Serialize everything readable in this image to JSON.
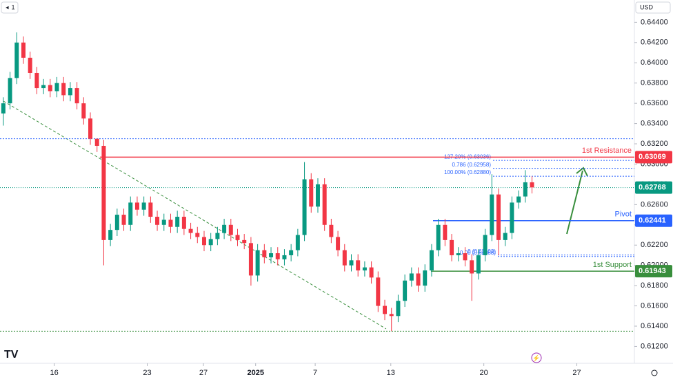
{
  "toolbar": {
    "interval": "1",
    "currency": "USD"
  },
  "chart_data": {
    "type": "candlestick",
    "up_color": "#089981",
    "down_color": "#f23645",
    "open": [
      0.635,
      0.636,
      0.6385,
      0.642,
      0.6405,
      0.639,
      0.6375,
      0.6378,
      0.6372,
      0.638,
      0.6368,
      0.6375,
      0.636,
      0.6345,
      0.6325,
      0.6318,
      0.6225,
      0.6235,
      0.625,
      0.624,
      0.6262,
      0.6255,
      0.6262,
      0.6248,
      0.624,
      0.6245,
      0.6238,
      0.6248,
      0.6236,
      0.6232,
      0.6228,
      0.622,
      0.6226,
      0.6232,
      0.624,
      0.623,
      0.6225,
      0.6222,
      0.619,
      0.6215,
      0.6208,
      0.6212,
      0.6206,
      0.621,
      0.6215,
      0.623,
      0.6285,
      0.6258,
      0.628,
      0.624,
      0.6228,
      0.6215,
      0.62,
      0.6205,
      0.6195,
      0.6198,
      0.6188,
      0.616,
      0.6152,
      0.615,
      0.6165,
      0.6185,
      0.6192,
      0.618,
      0.6195,
      0.6215,
      0.624,
      0.6225,
      0.621,
      0.6212,
      0.6205,
      0.6192,
      0.621,
      0.623,
      0.627,
      0.6225,
      0.6232,
      0.6262,
      0.6268,
      0.6282
    ],
    "high": [
      0.6366,
      0.6391,
      0.643,
      0.6426,
      0.6411,
      0.6396,
      0.6384,
      0.6384,
      0.6386,
      0.6386,
      0.6381,
      0.6381,
      0.6366,
      0.6351,
      0.6325,
      0.6324,
      0.6241,
      0.6256,
      0.6256,
      0.6268,
      0.6268,
      0.6268,
      0.6268,
      0.6254,
      0.6251,
      0.6251,
      0.6254,
      0.6254,
      0.6242,
      0.6238,
      0.6234,
      0.6232,
      0.6238,
      0.6246,
      0.6246,
      0.6236,
      0.6231,
      0.6228,
      0.6221,
      0.6221,
      0.6218,
      0.6218,
      0.6216,
      0.6221,
      0.6236,
      0.6302,
      0.6291,
      0.6286,
      0.6286,
      0.6246,
      0.6234,
      0.6221,
      0.6211,
      0.6211,
      0.6204,
      0.6204,
      0.6194,
      0.6166,
      0.6158,
      0.6171,
      0.6191,
      0.6198,
      0.6198,
      0.6201,
      0.6221,
      0.6246,
      0.6246,
      0.6231,
      0.6218,
      0.6218,
      0.6211,
      0.6216,
      0.6236,
      0.629,
      0.6276,
      0.6238,
      0.6268,
      0.6274,
      0.6294,
      0.6288
    ],
    "low": [
      0.6338,
      0.6354,
      0.6379,
      0.6399,
      0.6384,
      0.6369,
      0.6369,
      0.6366,
      0.6366,
      0.6362,
      0.6362,
      0.6354,
      0.6339,
      0.6319,
      0.6312,
      0.62,
      0.6219,
      0.6229,
      0.6234,
      0.6234,
      0.6249,
      0.6249,
      0.6242,
      0.6234,
      0.6234,
      0.6232,
      0.6232,
      0.623,
      0.6226,
      0.6222,
      0.6214,
      0.6214,
      0.622,
      0.6226,
      0.6224,
      0.6219,
      0.6216,
      0.618,
      0.6184,
      0.6202,
      0.6202,
      0.62,
      0.62,
      0.6204,
      0.6209,
      0.6224,
      0.6252,
      0.6252,
      0.6234,
      0.6222,
      0.6209,
      0.6194,
      0.6194,
      0.6189,
      0.6189,
      0.6182,
      0.6154,
      0.6146,
      0.6135,
      0.6144,
      0.6159,
      0.6179,
      0.6174,
      0.6174,
      0.6189,
      0.6209,
      0.6219,
      0.6204,
      0.6204,
      0.6199,
      0.6165,
      0.6186,
      0.6204,
      0.6224,
      0.621,
      0.6219,
      0.6226,
      0.6256,
      0.6262,
      0.6271
    ],
    "close": [
      0.636,
      0.6385,
      0.642,
      0.6405,
      0.639,
      0.6375,
      0.6378,
      0.6372,
      0.638,
      0.6368,
      0.6375,
      0.636,
      0.6345,
      0.6325,
      0.6318,
      0.6225,
      0.6235,
      0.625,
      0.624,
      0.6262,
      0.6255,
      0.6262,
      0.6248,
      0.624,
      0.6245,
      0.6238,
      0.6248,
      0.6236,
      0.6232,
      0.6228,
      0.622,
      0.6226,
      0.6232,
      0.624,
      0.623,
      0.6225,
      0.6222,
      0.619,
      0.6215,
      0.6208,
      0.6212,
      0.6206,
      0.621,
      0.6215,
      0.623,
      0.6285,
      0.6258,
      0.628,
      0.624,
      0.6228,
      0.6215,
      0.62,
      0.6205,
      0.6195,
      0.6198,
      0.6188,
      0.616,
      0.6152,
      0.615,
      0.6165,
      0.6185,
      0.6192,
      0.618,
      0.6195,
      0.6215,
      0.624,
      0.6225,
      0.621,
      0.6212,
      0.6205,
      0.6192,
      0.621,
      0.623,
      0.627,
      0.6225,
      0.6232,
      0.6262,
      0.6268,
      0.6282,
      0.6277
    ],
    "xlim": [
      -0.5,
      94.3
    ],
    "xticks": [
      {
        "value": 7.6,
        "label": "16"
      },
      {
        "value": 21.5,
        "label": "23"
      },
      {
        "value": 29.9,
        "label": "27"
      },
      {
        "value": 37.7,
        "label": "2025"
      },
      {
        "value": 46.6,
        "label": "7"
      },
      {
        "value": 57.9,
        "label": "13"
      },
      {
        "value": 71.8,
        "label": "20"
      },
      {
        "value": 85.7,
        "label": "27"
      }
    ],
    "ylim": [
      0.6104,
      0.6462
    ],
    "yticks": [
      {
        "value": 0.612,
        "label": "0.61200"
      },
      {
        "value": 0.614,
        "label": "0.61400"
      },
      {
        "value": 0.616,
        "label": "0.61600"
      },
      {
        "value": 0.618,
        "label": "0.61800"
      },
      {
        "value": 0.62,
        "label": "0.62000"
      },
      {
        "value": 0.622,
        "label": "0.62200"
      },
      {
        "value": 0.624,
        "label": "0.62400"
      },
      {
        "value": 0.626,
        "label": "0.62600"
      },
      {
        "value": 0.628,
        "label": "0.62800"
      },
      {
        "value": 0.63,
        "label": "0.63000"
      },
      {
        "value": 0.632,
        "label": "0.63200"
      },
      {
        "value": 0.634,
        "label": "0.63400"
      },
      {
        "value": 0.636,
        "label": "0.63600"
      },
      {
        "value": 0.638,
        "label": "0.63800"
      },
      {
        "value": 0.64,
        "label": "0.64000"
      },
      {
        "value": 0.642,
        "label": "0.64200"
      },
      {
        "value": 0.644,
        "label": "0.64400"
      }
    ],
    "grid": false,
    "levels": [
      {
        "name": "1st Resistance",
        "value": 0.63069,
        "color": "#f23645"
      },
      {
        "name": "Pivot",
        "value": 0.62441,
        "color": "#2962ff"
      },
      {
        "name": "1st Support",
        "value": 0.61943,
        "color": "#388e3c"
      }
    ],
    "current_price": {
      "value": 0.62768,
      "color": "#089981"
    },
    "dotted_levels": [
      {
        "value": 0.6325,
        "color": "#2962ff"
      },
      {
        "value": 0.6135,
        "color": "#388e3c"
      }
    ],
    "fib_levels": [
      {
        "label": "0.786 (0.62958)",
        "value": 0.62958
      },
      {
        "label": "127.20% (0.63036)",
        "value": 0.63036
      },
      {
        "label": "100.00% (0.62880)",
        "value": 0.6288
      },
      {
        "label": "0 (0.62102)",
        "value": 0.62102
      },
      {
        "label": "0.00 (0.62088)",
        "value": 0.62088
      }
    ]
  }
}
